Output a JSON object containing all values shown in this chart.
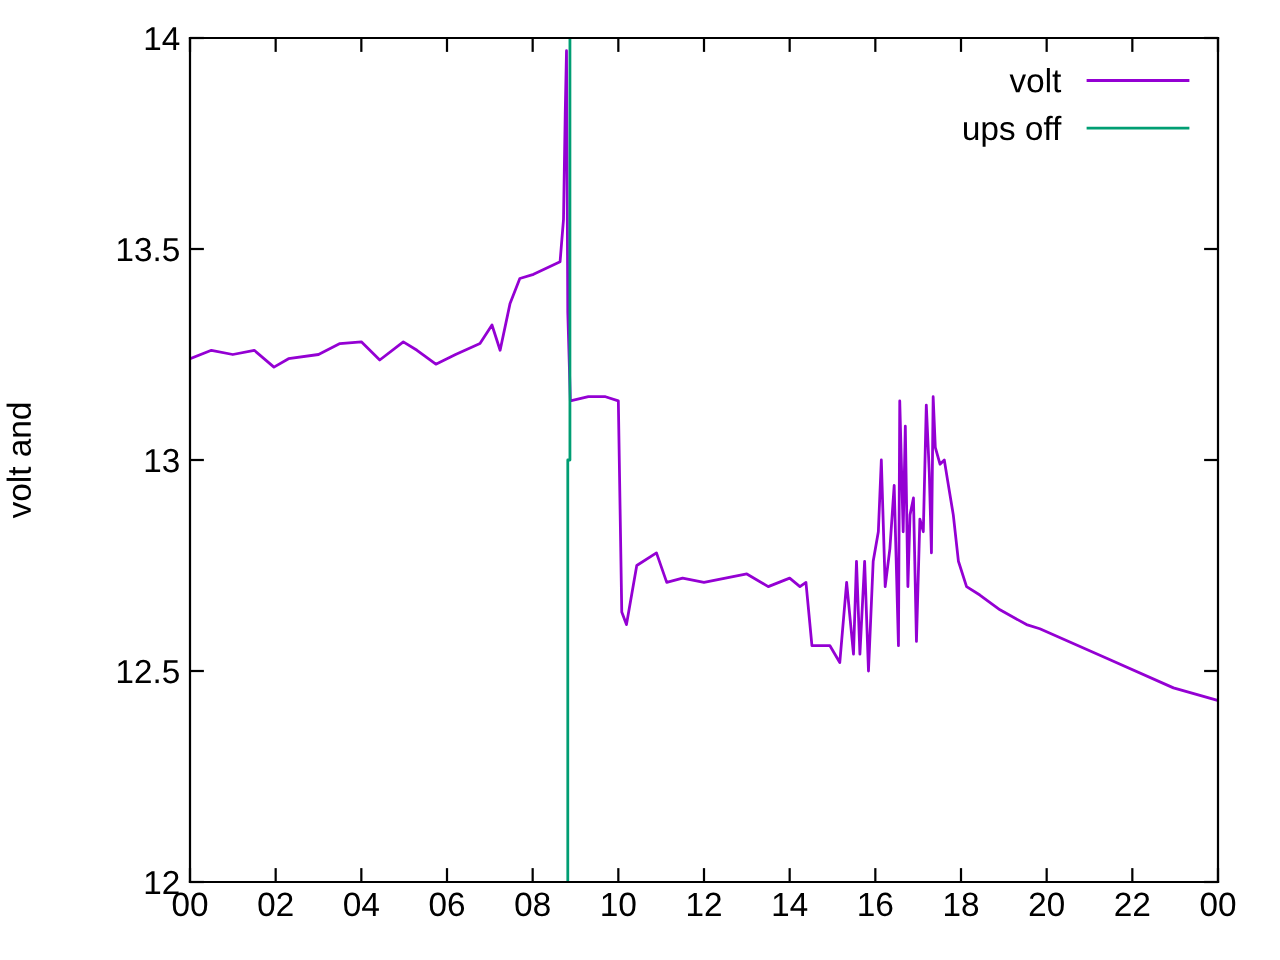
{
  "chart_data": {
    "type": "line",
    "ylabel": "volt and",
    "xlim": [
      0,
      24
    ],
    "ylim": [
      12,
      14
    ],
    "xticks": [
      {
        "value": 0,
        "label": "00"
      },
      {
        "value": 2,
        "label": "02"
      },
      {
        "value": 4,
        "label": "04"
      },
      {
        "value": 6,
        "label": "06"
      },
      {
        "value": 8,
        "label": "08"
      },
      {
        "value": 10,
        "label": "10"
      },
      {
        "value": 12,
        "label": "12"
      },
      {
        "value": 14,
        "label": "14"
      },
      {
        "value": 16,
        "label": "16"
      },
      {
        "value": 18,
        "label": "18"
      },
      {
        "value": 20,
        "label": "20"
      },
      {
        "value": 22,
        "label": "22"
      },
      {
        "value": 24,
        "label": "00"
      }
    ],
    "yticks": [
      12,
      12.5,
      13,
      13.5,
      14
    ],
    "grid": false,
    "legend": "top right",
    "marker": "none",
    "line_style": "solid",
    "series": [
      {
        "name": "volt",
        "color": "#9400d3",
        "x": [
          0,
          0.5,
          1,
          1.5,
          1.96,
          2.3,
          3.0,
          3.5,
          4.0,
          4.43,
          4.98,
          5.3,
          5.74,
          6.2,
          6.77,
          7.05,
          7.24,
          7.47,
          7.7,
          8.02,
          8.64,
          8.72,
          8.76,
          8.79,
          8.82,
          8.88,
          9.3,
          9.7,
          10.0,
          10.08,
          10.19,
          10.43,
          10.89,
          11.13,
          11.5,
          12.0,
          12.5,
          13.0,
          13.5,
          14.0,
          14.24,
          14.38,
          14.52,
          14.94,
          15.17,
          15.33,
          15.49,
          15.56,
          15.64,
          15.75,
          15.84,
          15.95,
          16.07,
          16.14,
          16.23,
          16.34,
          16.44,
          16.54,
          16.57,
          16.65,
          16.7,
          16.76,
          16.81,
          16.89,
          16.96,
          17.04,
          17.12,
          17.19,
          17.26,
          17.31,
          17.35,
          17.4,
          17.51,
          17.61,
          17.69,
          17.82,
          17.94,
          18.13,
          18.44,
          18.91,
          19.53,
          19.84,
          21.4,
          22.96,
          24.0
        ],
        "values": [
          13.24,
          13.26,
          13.25,
          13.26,
          13.22,
          13.24,
          13.25,
          13.276,
          13.28,
          13.237,
          13.28,
          13.26,
          13.227,
          13.25,
          13.276,
          13.32,
          13.26,
          13.37,
          13.43,
          13.44,
          13.47,
          13.57,
          13.82,
          13.97,
          13.35,
          13.14,
          13.15,
          13.15,
          13.14,
          12.64,
          12.61,
          12.75,
          12.78,
          12.71,
          12.72,
          12.71,
          12.72,
          12.73,
          12.7,
          12.72,
          12.7,
          12.71,
          12.56,
          12.56,
          12.52,
          12.71,
          12.54,
          12.76,
          12.54,
          12.76,
          12.5,
          12.76,
          12.83,
          13.0,
          12.7,
          12.79,
          12.94,
          12.56,
          13.14,
          12.83,
          13.08,
          12.7,
          12.87,
          12.91,
          12.57,
          12.86,
          12.83,
          13.13,
          12.97,
          12.78,
          13.15,
          13.03,
          12.99,
          13.0,
          12.95,
          12.87,
          12.76,
          12.7,
          12.68,
          12.645,
          12.61,
          12.6,
          12.53,
          12.46,
          12.43
        ]
      },
      {
        "name": "ups off",
        "color": "#009e73",
        "x": [
          8.82,
          8.82,
          8.87,
          8.87
        ],
        "values": [
          12,
          13.0,
          13.0,
          14
        ]
      }
    ]
  }
}
